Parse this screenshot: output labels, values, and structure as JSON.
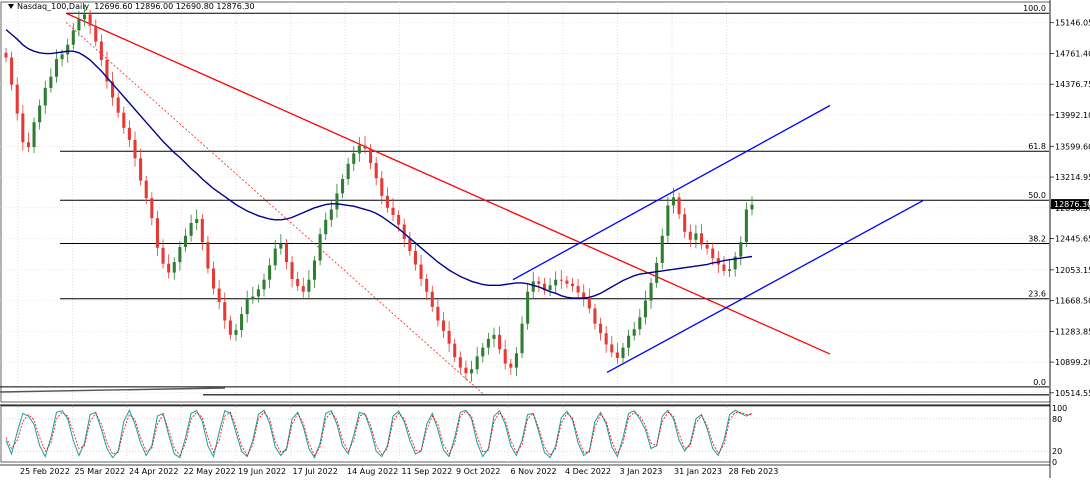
{
  "header": {
    "symbol": "Nasdaq_100,Daily",
    "ohlc": "12696.60 12896.00 12690.80 12876.30"
  },
  "colors": {
    "candle_up": "#2e7d32",
    "candle_down": "#e53935",
    "trendline": "#ff0000",
    "channel": "#0000ff",
    "ma": "#00008b",
    "fib": "#000000",
    "stoch_main": "#1b9e9e",
    "stoch_signal": "#ff0000",
    "price_marker_bg": "#000000",
    "price_marker_fg": "#ffffff"
  },
  "chart_data": {
    "type": "candlestick",
    "title": "Nasdaq_100,Daily",
    "price_axis": {
      "ticks": [
        "15146.05",
        "14761.40",
        "14376.75",
        "13992.10",
        "13599.60",
        "13214.95",
        "12830.30",
        "12445.65",
        "12053.15",
        "11668.50",
        "11283.85",
        "10899.20",
        "10514.55"
      ],
      "current_price": "12876.30",
      "range": [
        10400,
        15330
      ]
    },
    "x_labels": [
      "25 Feb 2022",
      "25 Mar 2022",
      "24 Apr 2022",
      "22 May 2022",
      "19 Jun 2022",
      "17 Jul 2022",
      "14 Aug 2022",
      "11 Sep 2022",
      "9 Oct 2022",
      "6 Nov 2022",
      "4 Dec 2022",
      "3 Jan 2023",
      "31 Jan 2023",
      "28 Feb 2023"
    ],
    "fib_levels": [
      {
        "label": "100.0",
        "value": 15265
      },
      {
        "label": "61.8",
        "value": 13538
      },
      {
        "label": "50.0",
        "value": 12925
      },
      {
        "label": "38.2",
        "value": 12383
      },
      {
        "label": "23.6",
        "value": 11692
      },
      {
        "label": "0.0",
        "value": 10590
      }
    ],
    "close_series": [
      14710,
      14370,
      14010,
      13650,
      13590,
      13900,
      14110,
      14330,
      14470,
      14690,
      14750,
      14870,
      15050,
      15190,
      15250,
      15110,
      14910,
      14680,
      14410,
      14210,
      14020,
      13830,
      13680,
      13450,
      13170,
      12950,
      12700,
      12330,
      12130,
      12020,
      12150,
      12340,
      12480,
      12640,
      12690,
      12400,
      12070,
      11820,
      11650,
      11420,
      11240,
      11300,
      11500,
      11690,
      11720,
      11810,
      11930,
      12110,
      12320,
      12380,
      12150,
      11940,
      11850,
      11780,
      11930,
      12170,
      12500,
      12680,
      12810,
      13010,
      13190,
      13380,
      13510,
      13610,
      13570,
      13390,
      13200,
      12980,
      12830,
      12740,
      12620,
      12440,
      12290,
      12120,
      11940,
      11780,
      11590,
      11420,
      11290,
      11130,
      10960,
      10830,
      10760,
      10810,
      10970,
      11080,
      11190,
      11240,
      11060,
      10880,
      10830,
      11010,
      11380,
      11780,
      11910,
      11880,
      11800,
      11860,
      11930,
      11920,
      11880,
      11850,
      11770,
      11700,
      11570,
      11380,
      11260,
      11120,
      11020,
      10950,
      11080,
      11230,
      11310,
      11460,
      11670,
      11890,
      12140,
      12480,
      12860,
      12960,
      12750,
      12530,
      12430,
      12510,
      12370,
      12320,
      12200,
      12120,
      12040,
      12060,
      12220,
      12400,
      12810,
      12870
    ],
    "ma_series": [
      15060,
      15000,
      14940,
      14870,
      14820,
      14790,
      14770,
      14760,
      14760,
      14770,
      14780,
      14790,
      14790,
      14770,
      14730,
      14680,
      14610,
      14540,
      14460,
      14380,
      14300,
      14220,
      14140,
      14060,
      13980,
      13900,
      13820,
      13740,
      13660,
      13590,
      13520,
      13460,
      13390,
      13320,
      13260,
      13190,
      13130,
      13070,
      13020,
      12970,
      12920,
      12870,
      12830,
      12790,
      12760,
      12730,
      12710,
      12690,
      12680,
      12680,
      12690,
      12710,
      12740,
      12770,
      12800,
      12830,
      12850,
      12870,
      12880,
      12880,
      12870,
      12860,
      12850,
      12830,
      12810,
      12790,
      12760,
      12720,
      12670,
      12620,
      12570,
      12510,
      12450,
      12390,
      12330,
      12270,
      12210,
      12150,
      12100,
      12050,
      12010,
      11970,
      11940,
      11910,
      11890,
      11870,
      11860,
      11860,
      11860,
      11870,
      11880,
      11890,
      11890,
      11880,
      11860,
      11840,
      11810,
      11780,
      11760,
      11730,
      11710,
      11700,
      11700,
      11700,
      11710,
      11730,
      11760,
      11800,
      11840,
      11880,
      11920,
      11950,
      11980,
      12000,
      12010,
      12020,
      12030,
      12040,
      12050,
      12060,
      12070,
      12080,
      12090,
      12100,
      12110,
      12120,
      12140,
      12150,
      12170,
      12180,
      12190,
      12200,
      12210,
      12220
    ],
    "stochastic": {
      "ticks": [
        "100",
        "80",
        "20",
        "0"
      ],
      "k": [
        40,
        15,
        55,
        90,
        85,
        70,
        30,
        10,
        45,
        92,
        95,
        80,
        40,
        12,
        35,
        88,
        92,
        60,
        25,
        8,
        20,
        75,
        96,
        70,
        35,
        12,
        30,
        85,
        90,
        50,
        15,
        8,
        45,
        90,
        95,
        75,
        30,
        10,
        55,
        95,
        90,
        55,
        20,
        10,
        40,
        88,
        96,
        72,
        28,
        12,
        25,
        80,
        92,
        65,
        25,
        8,
        35,
        90,
        95,
        70,
        30,
        15,
        50,
        92,
        88,
        60,
        20,
        10,
        30,
        85,
        94,
        75,
        40,
        15,
        20,
        70,
        90,
        60,
        22,
        10,
        45,
        92,
        96,
        80,
        35,
        10,
        25,
        85,
        95,
        70,
        30,
        12,
        40,
        88,
        90,
        55,
        18,
        8,
        30,
        82,
        94,
        78,
        35,
        12,
        20,
        75,
        92,
        70,
        28,
        10,
        45,
        90,
        95,
        80,
        60,
        25,
        30,
        85,
        96,
        80,
        40,
        20,
        35,
        80,
        88,
        62,
        25,
        12,
        40,
        88,
        96,
        90,
        85,
        90
      ],
      "d": [
        45,
        25,
        40,
        75,
        88,
        78,
        45,
        20,
        35,
        80,
        92,
        85,
        55,
        25,
        30,
        75,
        90,
        70,
        35,
        15,
        18,
        60,
        88,
        78,
        45,
        20,
        25,
        70,
        88,
        60,
        25,
        12,
        35,
        80,
        92,
        82,
        45,
        18,
        40,
        85,
        92,
        65,
        30,
        12,
        32,
        80,
        92,
        80,
        38,
        18,
        22,
        70,
        90,
        72,
        35,
        12,
        28,
        80,
        92,
        78,
        40,
        20,
        40,
        85,
        90,
        68,
        30,
        14,
        25,
        75,
        90,
        80,
        50,
        22,
        20,
        60,
        85,
        70,
        32,
        15,
        35,
        85,
        94,
        85,
        48,
        18,
        22,
        75,
        92,
        78,
        40,
        18,
        32,
        80,
        90,
        62,
        28,
        12,
        25,
        72,
        90,
        82,
        45,
        18,
        18,
        65,
        88,
        75,
        38,
        15,
        35,
        82,
        92,
        85,
        68,
        35,
        30,
        75,
        92,
        85,
        52,
        25,
        30,
        72,
        86,
        68,
        35,
        16,
        32,
        78,
        92,
        92,
        88,
        88
      ]
    }
  }
}
